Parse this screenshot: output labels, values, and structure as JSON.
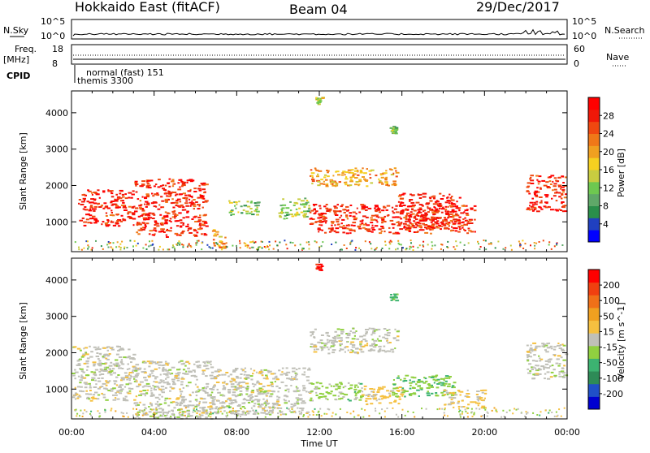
{
  "header": {
    "station": "Hokkaido East (fitACF)",
    "beam": "Beam 04",
    "date": "29/Dec/2017"
  },
  "nsky_panel": {
    "left_label": "N.Sky",
    "right_label": "N.Search",
    "ticks_left": [
      "10^5",
      "10^0"
    ],
    "ticks_right": [
      "10^5",
      "10^0"
    ]
  },
  "freq_panel": {
    "label_line1": "Freq.",
    "label_line2": "[MHz]",
    "ticks_left": [
      "18",
      "8"
    ],
    "right_label": "Nave",
    "ticks_right": [
      "60",
      "0"
    ]
  },
  "cpid_panel": {
    "label": "CPID",
    "entries": [
      "normal (fast) 151",
      "themis 3300"
    ]
  },
  "xaxis": {
    "label": "Time UT",
    "ticks": [
      "00:00",
      "04:00",
      "08:00",
      "12:00",
      "16:00",
      "20:00",
      "00:00"
    ]
  },
  "chart_data": [
    {
      "type": "heatmap",
      "name": "power",
      "ylabel": "Slant Range [km]",
      "ylim": [
        180,
        4600
      ],
      "yticks": [
        "1000",
        "2000",
        "3000",
        "4000"
      ],
      "xlim_hours": [
        0,
        24
      ],
      "colorbar": {
        "label": "Power [dB]",
        "ticks": [
          "28",
          "24",
          "20",
          "16",
          "12",
          "8",
          "4"
        ],
        "range": [
          0,
          32
        ],
        "colors": [
          "#0000ff",
          "#2040c0",
          "#2a8f4a",
          "#5fa868",
          "#6ec850",
          "#c8cc40",
          "#f5d020",
          "#f0a020",
          "#f07818",
          "#f04810",
          "#f01808",
          "#ff0000"
        ]
      },
      "regions": [
        {
          "t": [
            0.3,
            3.0
          ],
          "r": [
            900,
            1900
          ],
          "value": 28
        },
        {
          "t": [
            3.0,
            6.5
          ],
          "r": [
            600,
            2200
          ],
          "value": 28
        },
        {
          "t": [
            6.8,
            7.5
          ],
          "r": [
            300,
            800
          ],
          "value": 20
        },
        {
          "t": [
            7.5,
            9.0
          ],
          "r": [
            1200,
            1600
          ],
          "value": 12
        },
        {
          "t": [
            10.0,
            11.5
          ],
          "r": [
            1100,
            1700
          ],
          "value": 12
        },
        {
          "t": [
            11.5,
            15.8
          ],
          "r": [
            2000,
            2500
          ],
          "value": 20
        },
        {
          "t": [
            11.5,
            19.5
          ],
          "r": [
            700,
            1500
          ],
          "value": 28
        },
        {
          "t": [
            15.8,
            18.8
          ],
          "r": [
            800,
            1800
          ],
          "value": 28
        },
        {
          "t": [
            11.8,
            12.1
          ],
          "r": [
            4250,
            4450
          ],
          "value": 16
        },
        {
          "t": [
            15.4,
            15.7
          ],
          "r": [
            3450,
            3650
          ],
          "value": 12
        },
        {
          "t": [
            22.0,
            23.9
          ],
          "r": [
            1300,
            2300
          ],
          "value": 28
        }
      ]
    },
    {
      "type": "heatmap",
      "name": "velocity",
      "ylabel": "Slant Range [km]",
      "ylim": [
        180,
        4600
      ],
      "yticks": [
        "1000",
        "2000",
        "3000",
        "4000"
      ],
      "xlim_hours": [
        0,
        24
      ],
      "colorbar": {
        "label": "Velocity [m s^-1]",
        "ticks": [
          "200",
          "100",
          "50",
          "15",
          "-15",
          "-50",
          "-100",
          "-200"
        ],
        "range": [
          -250,
          250
        ],
        "colors": [
          "#0000d0",
          "#2050c8",
          "#2e8b57",
          "#3cb371",
          "#90d040",
          "#c0c0b8",
          "#f5c040",
          "#f0a020",
          "#f07018",
          "#f04010",
          "#ff0000"
        ]
      },
      "regions": [
        {
          "t": [
            0.0,
            3.0
          ],
          "r": [
            700,
            2200
          ],
          "value": 0
        },
        {
          "t": [
            3.0,
            6.8
          ],
          "r": [
            200,
            1800
          ],
          "value": 0
        },
        {
          "t": [
            6.8,
            11.5
          ],
          "r": [
            300,
            1600
          ],
          "value": 0
        },
        {
          "t": [
            11.5,
            15.8
          ],
          "r": [
            2000,
            2700
          ],
          "value": 0
        },
        {
          "t": [
            11.5,
            14.0
          ],
          "r": [
            700,
            1200
          ],
          "value": -40
        },
        {
          "t": [
            14.0,
            16.0
          ],
          "r": [
            600,
            1100
          ],
          "value": 35
        },
        {
          "t": [
            15.5,
            18.5
          ],
          "r": [
            800,
            1400
          ],
          "value": -60
        },
        {
          "t": [
            18.0,
            20.0
          ],
          "r": [
            500,
            1000
          ],
          "value": 30
        },
        {
          "t": [
            11.8,
            12.1
          ],
          "r": [
            4250,
            4450
          ],
          "value": 210
        },
        {
          "t": [
            15.4,
            15.7
          ],
          "r": [
            3450,
            3650
          ],
          "value": -80
        },
        {
          "t": [
            22.0,
            23.9
          ],
          "r": [
            1300,
            2300
          ],
          "value": 0
        }
      ]
    }
  ]
}
